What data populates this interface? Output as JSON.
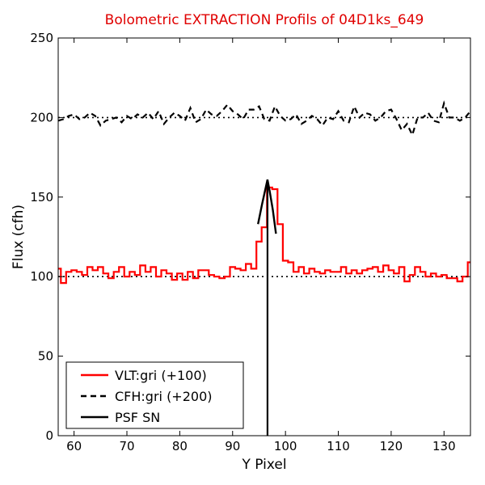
{
  "chart_data": {
    "type": "line",
    "title": "Bolometric EXTRACTION Profils of 04D1ks_649",
    "xlabel": "Y Pixel",
    "ylabel": "Flux (cfh)",
    "xlim": [
      57,
      135
    ],
    "ylim": [
      0,
      250
    ],
    "xticks": [
      60,
      70,
      80,
      90,
      100,
      110,
      120,
      130
    ],
    "yticks": [
      0,
      50,
      100,
      150,
      200,
      250
    ],
    "grid": false,
    "legend_position": "lower-left",
    "reference_lines": [
      100,
      200
    ],
    "series": [
      {
        "name": "VLT:gri (+100)",
        "style": "step",
        "color": "#ff0000",
        "x": [
          57,
          58,
          59,
          60,
          61,
          62,
          63,
          64,
          65,
          66,
          67,
          68,
          69,
          70,
          71,
          72,
          73,
          74,
          75,
          76,
          77,
          78,
          79,
          80,
          81,
          82,
          83,
          84,
          85,
          86,
          87,
          88,
          89,
          90,
          91,
          92,
          93,
          94,
          95,
          96,
          97,
          98,
          99,
          100,
          101,
          102,
          103,
          104,
          105,
          106,
          107,
          108,
          109,
          110,
          111,
          112,
          113,
          114,
          115,
          116,
          117,
          118,
          119,
          120,
          121,
          122,
          123,
          124,
          125,
          126,
          127,
          128,
          129,
          130,
          131,
          132,
          133,
          134,
          135
        ],
        "values": [
          105,
          96,
          103,
          104,
          103,
          101,
          106,
          104,
          106,
          102,
          99,
          103,
          106,
          100,
          103,
          101,
          107,
          103,
          106,
          100,
          104,
          102,
          98,
          102,
          98,
          103,
          99,
          104,
          104,
          101,
          100,
          99,
          100,
          106,
          105,
          104,
          108,
          105,
          122,
          131,
          156,
          155,
          133,
          110,
          109,
          103,
          106,
          102,
          105,
          103,
          102,
          104,
          103,
          103,
          106,
          102,
          104,
          102,
          104,
          105,
          106,
          103,
          107,
          104,
          102,
          106,
          97,
          101,
          106,
          103,
          100,
          102,
          100,
          101,
          99,
          99,
          97,
          100,
          109
        ]
      },
      {
        "name": "CFH:gri (+200)",
        "style": "dashed",
        "color": "#000000",
        "x": [
          57,
          58,
          59,
          60,
          61,
          62,
          63,
          64,
          65,
          66,
          67,
          68,
          69,
          70,
          71,
          72,
          73,
          74,
          75,
          76,
          77,
          78,
          79,
          80,
          81,
          82,
          83,
          84,
          85,
          86,
          87,
          88,
          89,
          90,
          91,
          92,
          93,
          94,
          95,
          96,
          97,
          98,
          99,
          100,
          101,
          102,
          103,
          104,
          105,
          106,
          107,
          108,
          109,
          110,
          111,
          112,
          113,
          114,
          115,
          116,
          117,
          118,
          119,
          120,
          121,
          122,
          123,
          124,
          125,
          126,
          127,
          128,
          129,
          130,
          131,
          132,
          133,
          134,
          135
        ],
        "values": [
          198,
          199,
          201,
          202,
          199,
          200,
          203,
          201,
          195,
          198,
          199,
          200,
          197,
          201,
          199,
          202,
          200,
          203,
          199,
          204,
          196,
          200,
          203,
          201,
          198,
          206,
          197,
          199,
          205,
          202,
          201,
          204,
          208,
          204,
          202,
          199,
          205,
          205,
          207,
          199,
          198,
          207,
          201,
          198,
          199,
          202,
          196,
          198,
          201,
          199,
          195,
          200,
          199,
          204,
          198,
          197,
          207,
          200,
          203,
          202,
          198,
          200,
          204,
          205,
          199,
          192,
          196,
          189,
          200,
          200,
          203,
          198,
          197,
          209,
          200,
          200,
          198,
          200,
          204
        ]
      },
      {
        "name": "PSF SN",
        "style": "solid",
        "color": "#000000",
        "x": [
          94.8,
          95.6,
          96.2,
          96.6,
          97.0,
          97.6,
          98.2
        ],
        "values": [
          133,
          146,
          155,
          161,
          154,
          142,
          127
        ]
      }
    ],
    "vertical_marker_x": 96.6
  }
}
